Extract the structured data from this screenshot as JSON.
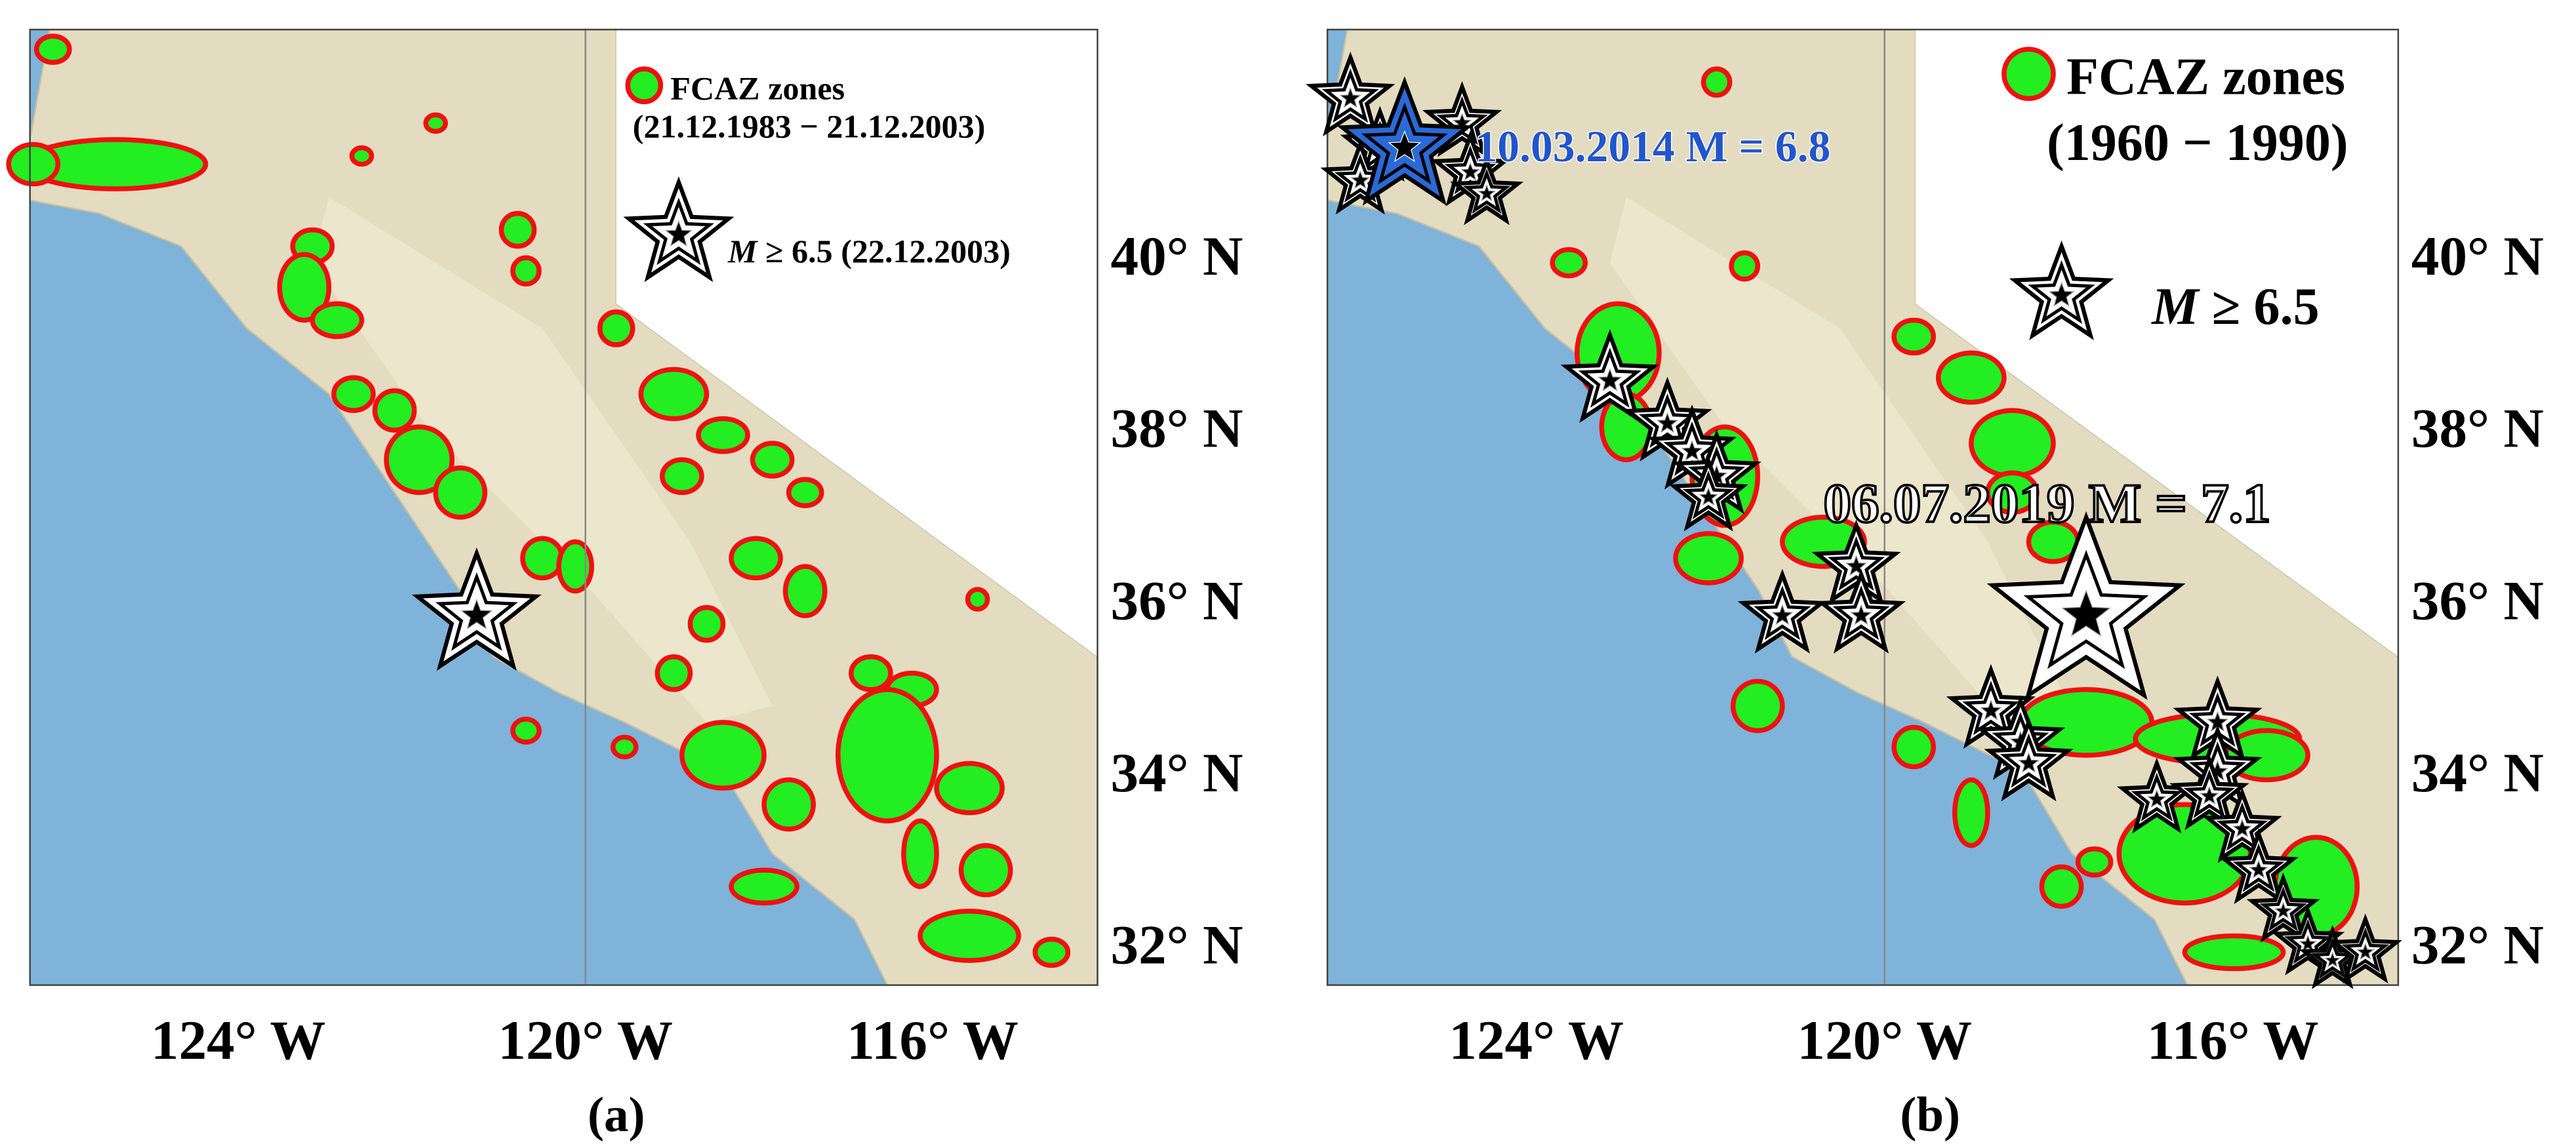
{
  "panels": [
    {
      "xlim": [
        -126.4,
        -114.1
      ],
      "ylim": [
        31.6,
        42.7
      ],
      "xticks": [
        {
          "value": -124,
          "label": "124° W"
        },
        {
          "value": -120,
          "label": "120° W"
        },
        {
          "value": -116,
          "label": "116° W"
        }
      ],
      "yticks": [
        {
          "value": 32,
          "label": "32° N"
        },
        {
          "value": 34,
          "label": "34° N"
        },
        {
          "value": 36,
          "label": "36° N"
        },
        {
          "value": 38,
          "label": "38° N"
        },
        {
          "value": 40,
          "label": "40° N"
        }
      ],
      "legend": {
        "zones": "FCAZ zones",
        "zones_period": "(21.12.1983 − 21.12.2003)",
        "star_symbol": "M",
        "star_text": "≥ 6.5 (22.12.2003)"
      },
      "caption": "(a)"
    },
    {
      "xlim": [
        -126.4,
        -114.1
      ],
      "ylim": [
        31.6,
        42.7
      ],
      "xticks": [
        {
          "value": -124,
          "label": "124° W"
        },
        {
          "value": -120,
          "label": "120° W"
        },
        {
          "value": -116,
          "label": "116° W"
        }
      ],
      "yticks": [
        {
          "value": 32,
          "label": "32° N"
        },
        {
          "value": 34,
          "label": "34° N"
        },
        {
          "value": 36,
          "label": "36° N"
        },
        {
          "value": 38,
          "label": "38° N"
        },
        {
          "value": 40,
          "label": "40° N"
        }
      ],
      "legend": {
        "zones": "FCAZ zones",
        "zones_period": "(1960 − 1990)",
        "star_symbol": "M",
        "star_text": "≥ 6.5"
      },
      "annotations": [
        "10.03.2014 M = 6.8",
        "06.07.2019 M = 7.1"
      ],
      "caption": "(b)"
    }
  ]
}
